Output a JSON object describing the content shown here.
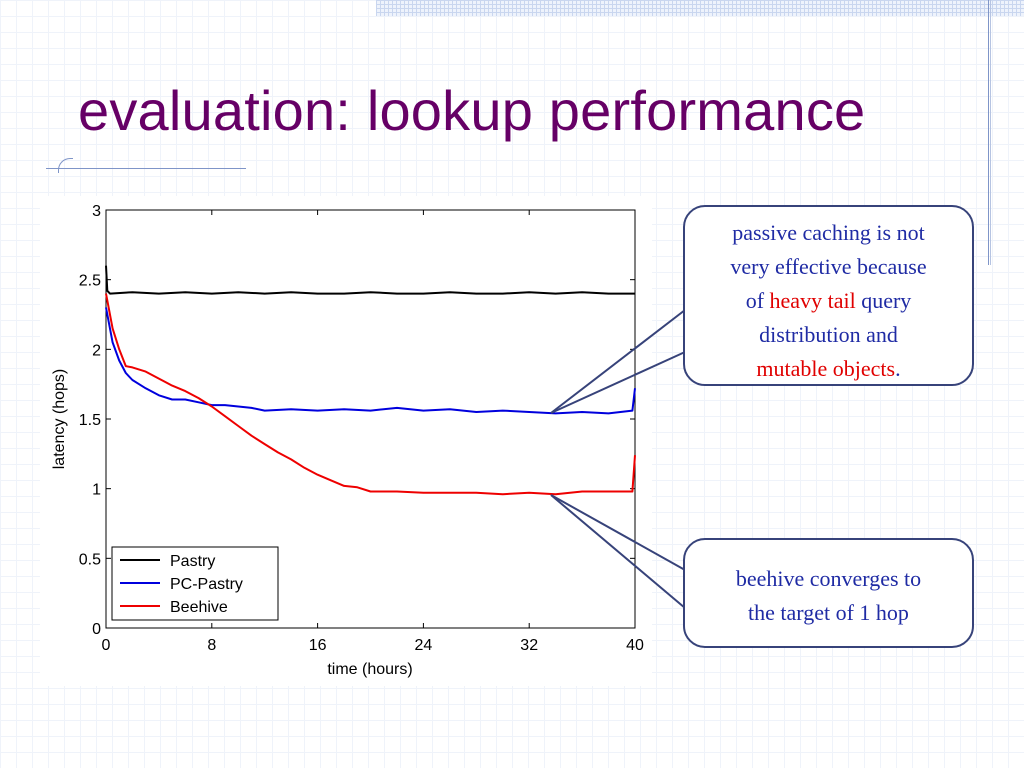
{
  "slide": {
    "title": "evaluation: lookup performance"
  },
  "callouts": {
    "top": {
      "line1": "passive caching is not",
      "line2": "very effective because",
      "of": "of",
      "heavy_tail": "heavy tail",
      "query": "query",
      "line4": "distribution and",
      "mutable_objects": "mutable objects",
      "period": "."
    },
    "bottom": {
      "line1": "beehive converges to",
      "line2": "the target of 1 hop"
    }
  },
  "colors": {
    "title": "#660066",
    "callout_text": "#1f2ba4",
    "highlight": "#e00000",
    "pastry": "#000000",
    "pc_pastry": "#0000dd",
    "beehive": "#ee0000"
  },
  "chart_data": {
    "type": "line",
    "xlabel": "time (hours)",
    "ylabel": "latency (hops)",
    "xlim": [
      0,
      40
    ],
    "ylim": [
      0,
      3
    ],
    "xticks": [
      "0",
      "8",
      "16",
      "24",
      "32",
      "40"
    ],
    "yticks": [
      "0",
      "0.5",
      "1",
      "1.5",
      "2",
      "2.5",
      "3"
    ],
    "grid": false,
    "legend_position": "bottom-left",
    "series": [
      {
        "name": "Pastry",
        "color": "#000000",
        "x": [
          0,
          0.1,
          0.3,
          2,
          4,
          6,
          8,
          10,
          12,
          14,
          16,
          18,
          20,
          22,
          24,
          26,
          28,
          30,
          32,
          34,
          36,
          38,
          40
        ],
        "y": [
          2.6,
          2.42,
          2.4,
          2.41,
          2.4,
          2.41,
          2.4,
          2.41,
          2.4,
          2.41,
          2.4,
          2.4,
          2.41,
          2.4,
          2.4,
          2.41,
          2.4,
          2.4,
          2.41,
          2.4,
          2.41,
          2.4,
          2.4
        ]
      },
      {
        "name": "PC-Pastry",
        "color": "#0000dd",
        "x": [
          0,
          0.5,
          1,
          1.5,
          2,
          3,
          4,
          5,
          6,
          7,
          8,
          9,
          10,
          11,
          12,
          14,
          16,
          18,
          20,
          22,
          24,
          26,
          28,
          30,
          32,
          34,
          36,
          38,
          39.8,
          40
        ],
        "y": [
          2.3,
          2.05,
          1.92,
          1.83,
          1.78,
          1.72,
          1.67,
          1.64,
          1.64,
          1.62,
          1.6,
          1.6,
          1.59,
          1.58,
          1.56,
          1.57,
          1.56,
          1.57,
          1.56,
          1.58,
          1.56,
          1.57,
          1.55,
          1.56,
          1.55,
          1.54,
          1.55,
          1.54,
          1.56,
          1.72
        ]
      },
      {
        "name": "Beehive",
        "color": "#ee0000",
        "x": [
          0,
          0.5,
          1,
          1.5,
          2,
          3,
          4,
          5,
          6,
          7,
          8,
          9,
          10,
          11,
          12,
          13,
          14,
          15,
          16,
          17,
          18,
          19,
          20,
          22,
          24,
          26,
          28,
          30,
          32,
          34,
          36,
          38,
          39.8,
          40
        ],
        "y": [
          2.4,
          2.15,
          2.0,
          1.88,
          1.87,
          1.84,
          1.79,
          1.74,
          1.7,
          1.65,
          1.59,
          1.52,
          1.45,
          1.38,
          1.32,
          1.26,
          1.21,
          1.15,
          1.1,
          1.06,
          1.02,
          1.01,
          0.98,
          0.98,
          0.97,
          0.97,
          0.97,
          0.96,
          0.97,
          0.96,
          0.98,
          0.98,
          0.98,
          1.24
        ]
      }
    ]
  }
}
